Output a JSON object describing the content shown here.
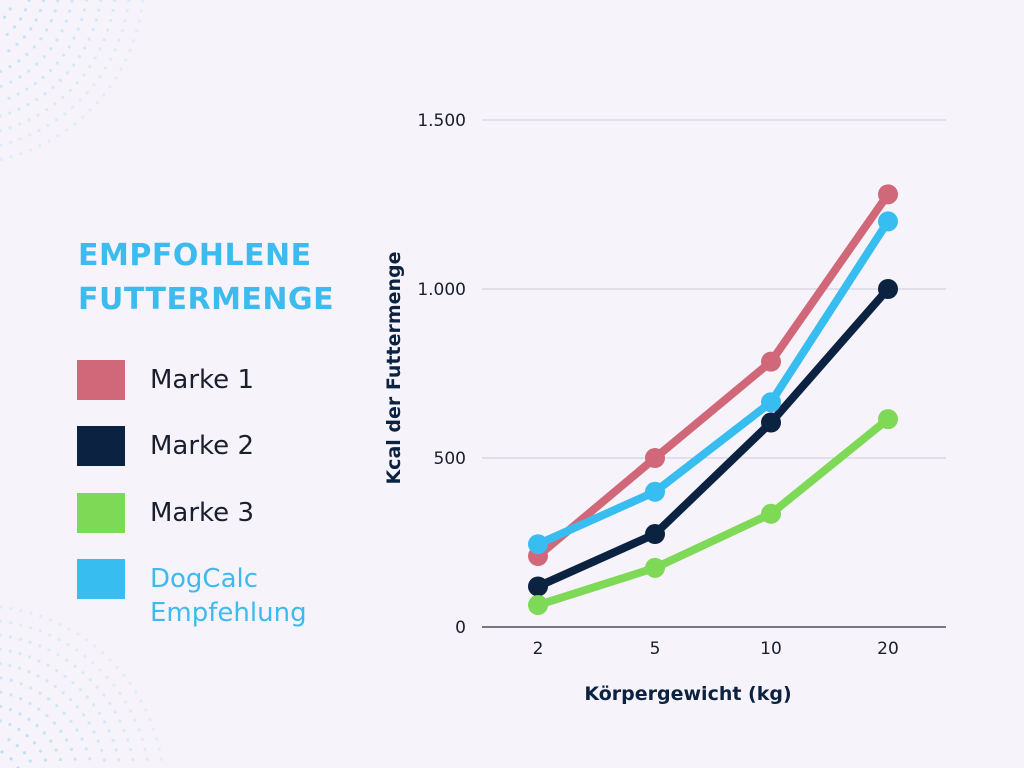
{
  "header": {
    "title_line1": "EMPFOHLENE",
    "title_line2": "FUTTERMENGE"
  },
  "legend": {
    "items": [
      {
        "label": "Marke 1",
        "color": "#d0687a"
      },
      {
        "label": "Marke 2",
        "color": "#0b2240"
      },
      {
        "label": "Marke 3",
        "color": "#7ed957"
      },
      {
        "label": "DogCalc Empfehlung",
        "color": "#38bdf0"
      }
    ]
  },
  "chart_data": {
    "type": "line",
    "title": "EMPFOHLENE FUTTERMENGE",
    "xlabel": "Körpergewicht (kg)",
    "ylabel": "Kcal der Futtermenge",
    "categories": [
      "2",
      "5",
      "10",
      "20"
    ],
    "y_ticks": [
      0,
      500,
      1000,
      1500
    ],
    "y_tick_labels": [
      "0",
      "500",
      "1.000",
      "1.500"
    ],
    "ylim": [
      0,
      1500
    ],
    "grid": true,
    "series": [
      {
        "name": "Marke 1",
        "color": "#d0687a",
        "values": [
          210,
          500,
          785,
          1280
        ]
      },
      {
        "name": "Marke 2",
        "color": "#0b2240",
        "values": [
          120,
          275,
          605,
          1000
        ]
      },
      {
        "name": "Marke 3",
        "color": "#7ed957",
        "values": [
          65,
          175,
          335,
          615
        ]
      },
      {
        "name": "DogCalc Empfehlung",
        "color": "#38bdf0",
        "values": [
          245,
          400,
          665,
          1200
        ]
      }
    ]
  }
}
